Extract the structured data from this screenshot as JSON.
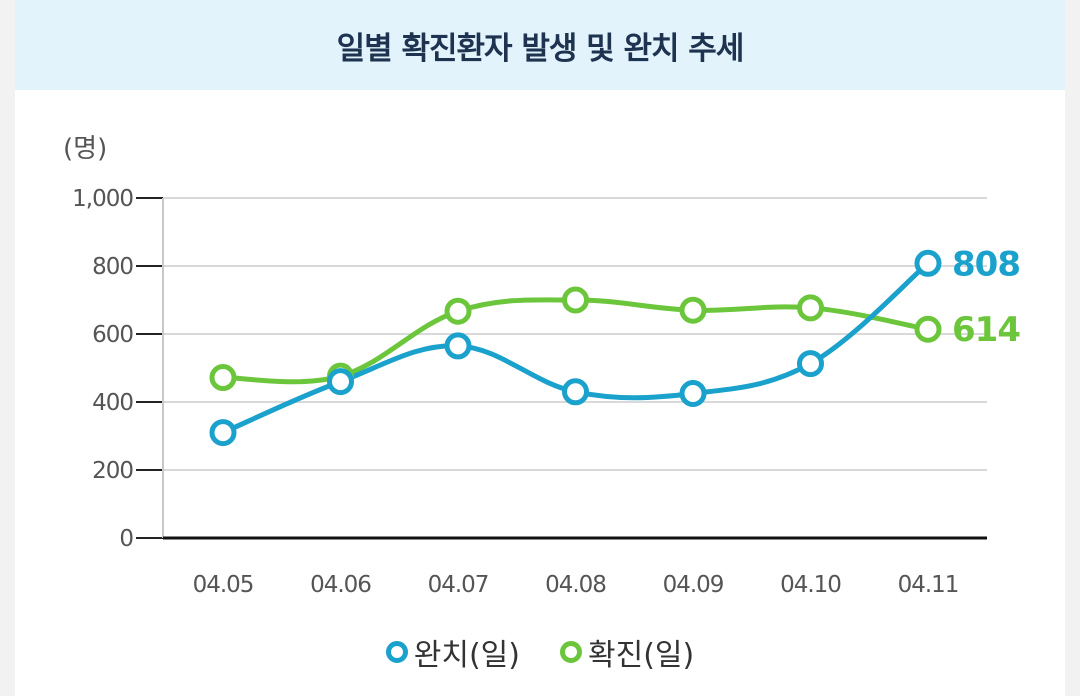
{
  "header": {
    "title": "일별 확진환자 발생 및 완치 추세"
  },
  "colors": {
    "header_bg": "#e3f3fb",
    "recovered": "#1aa1cc",
    "confirmed": "#6cc63c"
  },
  "chart_data": {
    "type": "line",
    "unit_label": "(명)",
    "categories": [
      "04.05",
      "04.06",
      "04.07",
      "04.08",
      "04.09",
      "04.10",
      "04.11"
    ],
    "ylim": [
      0,
      1000
    ],
    "yticks": [
      0,
      200,
      400,
      600,
      800,
      1000
    ],
    "ytick_labels": [
      "0",
      "200",
      "400",
      "600",
      "800",
      "1,000"
    ],
    "grid": true,
    "series": [
      {
        "key": "recovered",
        "name": "완치(일)",
        "color": "#1aa1cc",
        "values": [
          310,
          460,
          565,
          430,
          425,
          513,
          808
        ],
        "end_label": "808"
      },
      {
        "key": "confirmed",
        "name": "확진(일)",
        "color": "#6cc63c",
        "values": [
          472,
          476,
          667,
          700,
          670,
          677,
          614
        ],
        "end_label": "614"
      }
    ]
  }
}
